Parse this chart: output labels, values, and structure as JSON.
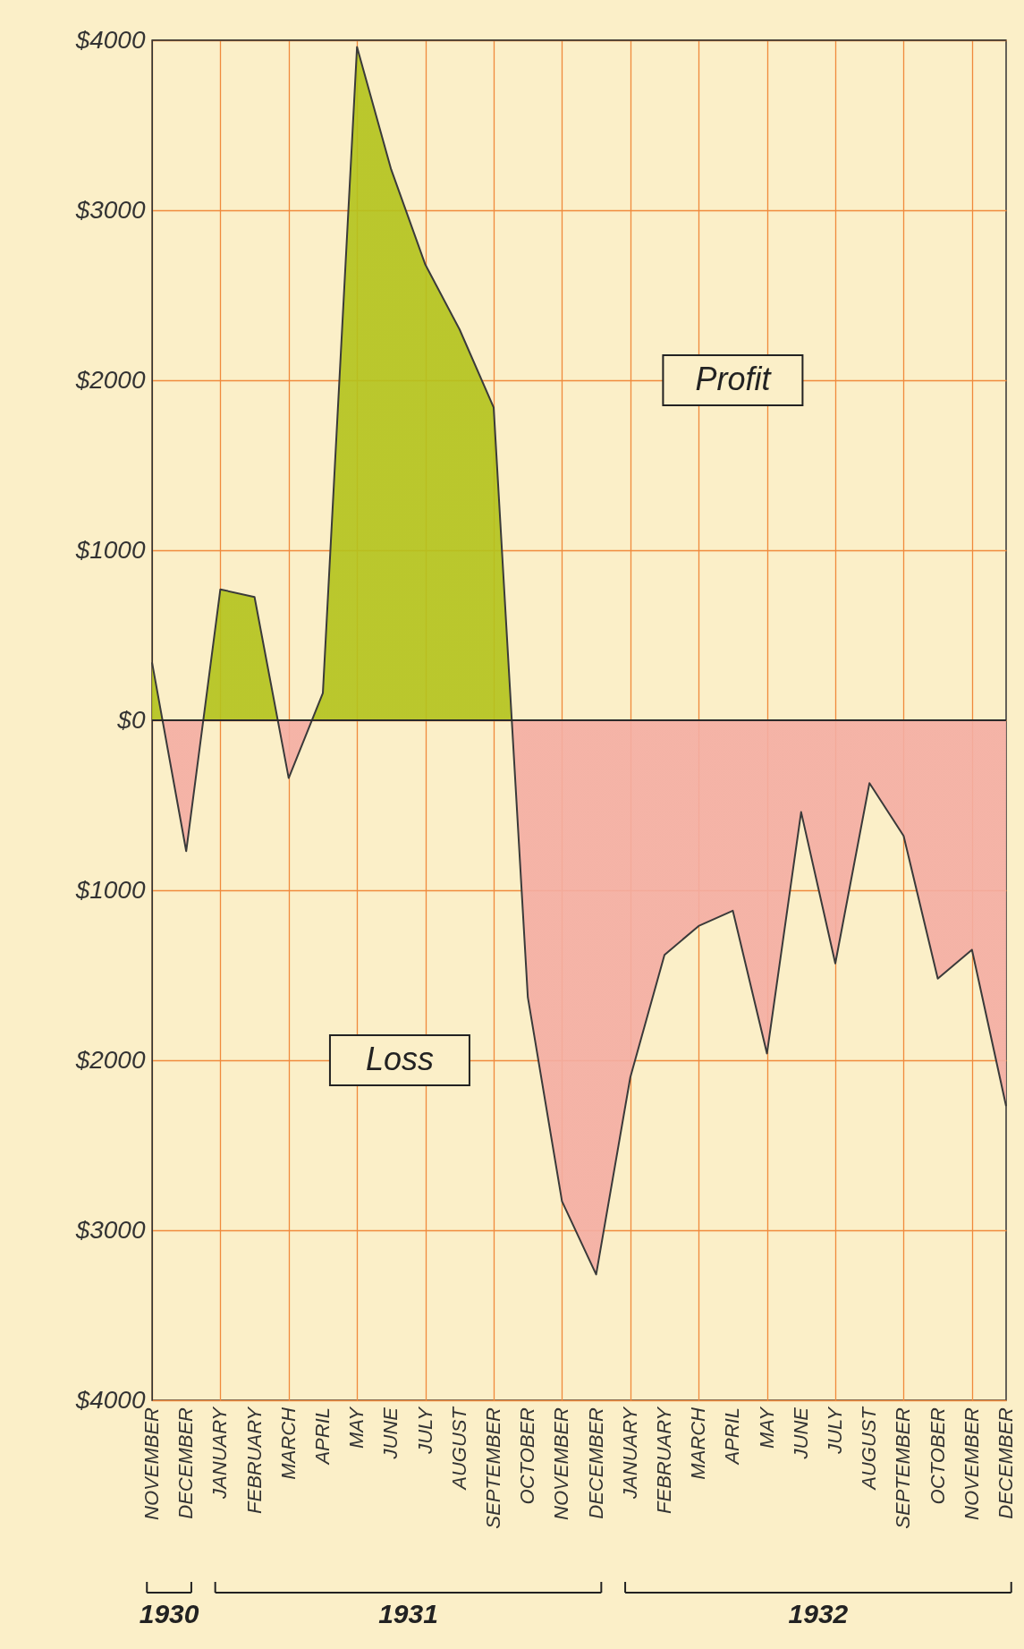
{
  "chart_data": {
    "type": "area",
    "categories": [
      "NOVEMBER",
      "DECEMBER",
      "JANUARY",
      "FEBRUARY",
      "MARCH",
      "APRIL",
      "MAY",
      "JUNE",
      "JULY",
      "AUGUST",
      "SEPTEMBER",
      "OCTOBER",
      "NOVEMBER",
      "DECEMBER",
      "JANUARY",
      "FEBRUARY",
      "MARCH",
      "APRIL",
      "MAY",
      "JUNE",
      "JULY",
      "AUGUST",
      "SEPTEMBER",
      "OCTOBER",
      "NOVEMBER",
      "DECEMBER"
    ],
    "series": [
      {
        "color": "#3a3a3a",
        "values": [
          340,
          -770,
          770,
          725,
          -340,
          160,
          3960,
          3240,
          2680,
          2300,
          1840,
          -1630,
          -2830,
          -3260,
          -2100,
          -1380,
          -1210,
          -1120,
          -1960,
          -540,
          -1430,
          -370,
          -680,
          -1520,
          -1350,
          -2270
        ],
        "colors": [
          "#b3c31c",
          "#f4ada3",
          "#b3c31c",
          "#b3c31c",
          "#f4ada3",
          "#b3c31c",
          "#b3c31c",
          "#b3c31c",
          "#b3c31c",
          "#b3c31c",
          "#b3c31c",
          "#f4ada3",
          "#f4ada3",
          "#f4ada3",
          "#f4ada3",
          "#f4ada3",
          "#f4ada3",
          "#f4ada3",
          "#f4ada3",
          "#f4ada3",
          "#f4ada3",
          "#f4ada3",
          "#f4ada3",
          "#f4ada3",
          "#f4ada3",
          "#f4ada3"
        ]
      }
    ],
    "ylim": [
      -4000,
      4000
    ],
    "yticks": [
      {
        "value": -4000,
        "label": "$4000"
      },
      {
        "value": -3000,
        "label": "$3000"
      },
      {
        "value": -2000,
        "label": "$2000"
      },
      {
        "value": -1000,
        "label": "$1000"
      },
      {
        "value": 0,
        "label": "$0"
      },
      {
        "value": 1000,
        "label": "$1000"
      },
      {
        "value": 2000,
        "label": "$2000"
      },
      {
        "value": 3000,
        "label": "$3000"
      },
      {
        "value": 4000,
        "label": "$4000"
      }
    ],
    "ref_lines": [
      {
        "axis": "y",
        "value": 0,
        "color": "#2a2a2a"
      }
    ],
    "annotations": [
      "Profit",
      "Loss",
      "1930",
      "1931",
      "1932"
    ],
    "grid": true,
    "marker": "none",
    "line_style": "solid"
  }
}
